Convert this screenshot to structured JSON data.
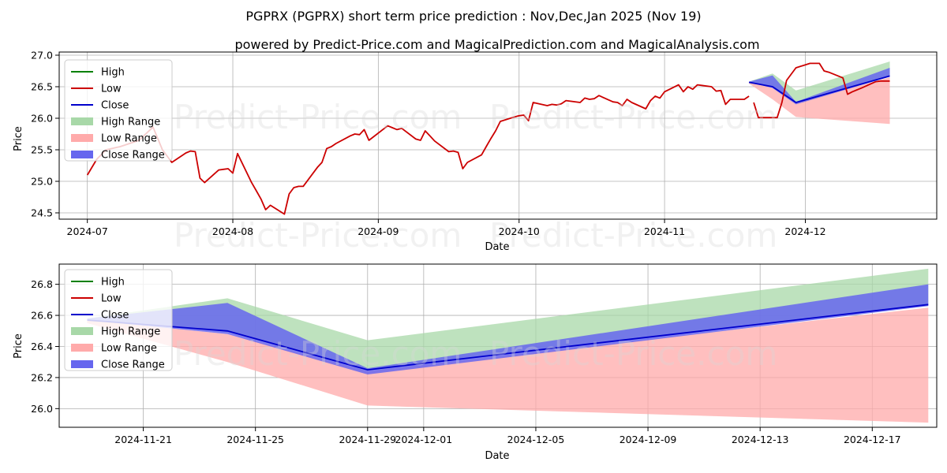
{
  "title": "PGPRX (PGPRX) short term price prediction : Nov,Dec,Jan 2025 (Nov 19)",
  "subtitle": "powered by Predict-Price.com and MagicalPrediction.com and MagicalAnalysis.com",
  "watermark": "Predict-Price.com",
  "colors": {
    "high": "#008000",
    "low": "#cc0000",
    "close": "#0000cc",
    "high_range": "#a8d8a8",
    "low_range": "#ffaaaa",
    "close_range": "#6666ee"
  },
  "chart_data": [
    {
      "type": "line",
      "xlabel": "Date",
      "ylabel": "Price",
      "ylim": [
        24.4,
        27.05
      ],
      "x_axis": {
        "start": "2024-06-25",
        "end": "2024-12-29"
      },
      "xticks": [
        {
          "date": "2024-07-01",
          "label": "2024-07"
        },
        {
          "date": "2024-08-01",
          "label": "2024-08"
        },
        {
          "date": "2024-09-01",
          "label": "2024-09"
        },
        {
          "date": "2024-10-01",
          "label": "2024-10"
        },
        {
          "date": "2024-11-01",
          "label": "2024-11"
        },
        {
          "date": "2024-12-01",
          "label": "2024-12"
        }
      ],
      "yticks": [
        24.5,
        25.0,
        25.5,
        26.0,
        26.5,
        27.0
      ],
      "grid": true,
      "legend_position": "top-left",
      "legend": [
        "High",
        "Low",
        "Close",
        "High Range",
        "Low Range",
        "Close Range"
      ],
      "series": [
        {
          "name": "Low",
          "x": [
            "2024-07-01",
            "2024-07-03",
            "2024-07-05",
            "2024-07-08",
            "2024-07-10",
            "2024-07-12",
            "2024-07-15",
            "2024-07-16",
            "2024-07-17",
            "2024-07-18",
            "2024-07-19",
            "2024-07-22",
            "2024-07-23",
            "2024-07-24",
            "2024-07-25",
            "2024-07-26",
            "2024-07-29",
            "2024-07-30",
            "2024-07-31",
            "2024-08-01",
            "2024-08-02",
            "2024-08-05",
            "2024-08-06",
            "2024-08-07",
            "2024-08-08",
            "2024-08-09",
            "2024-08-12",
            "2024-08-13",
            "2024-08-14",
            "2024-08-15",
            "2024-08-16",
            "2024-08-19",
            "2024-08-20",
            "2024-08-21",
            "2024-08-22",
            "2024-08-23",
            "2024-08-26",
            "2024-08-27",
            "2024-08-28",
            "2024-08-29",
            "2024-08-30",
            "2024-09-03",
            "2024-09-04",
            "2024-09-05",
            "2024-09-06",
            "2024-09-09",
            "2024-09-10",
            "2024-09-11",
            "2024-09-12",
            "2024-09-13",
            "2024-09-16",
            "2024-09-17",
            "2024-09-18",
            "2024-09-19",
            "2024-09-20",
            "2024-09-23",
            "2024-09-24",
            "2024-09-25",
            "2024-09-26",
            "2024-09-27",
            "2024-09-30",
            "2024-10-01",
            "2024-10-02",
            "2024-10-03",
            "2024-10-04",
            "2024-10-07",
            "2024-10-08",
            "2024-10-09",
            "2024-10-10",
            "2024-10-11",
            "2024-10-14",
            "2024-10-15",
            "2024-10-16",
            "2024-10-17",
            "2024-10-18",
            "2024-10-21",
            "2024-10-22",
            "2024-10-23",
            "2024-10-24",
            "2024-10-25",
            "2024-10-28",
            "2024-10-29",
            "2024-10-30",
            "2024-10-31",
            "2024-11-01",
            "2024-11-04",
            "2024-11-05",
            "2024-11-06",
            "2024-11-07",
            "2024-11-08",
            "2024-11-11",
            "2024-11-12",
            "2024-11-13",
            "2024-11-14",
            "2024-11-15",
            "2024-11-18",
            "2024-11-19"
          ],
          "values": [
            25.1,
            25.35,
            25.5,
            25.55,
            25.6,
            25.65,
            25.86,
            25.68,
            25.5,
            25.4,
            25.3,
            25.45,
            25.48,
            25.47,
            25.05,
            24.98,
            25.18,
            25.19,
            25.2,
            25.13,
            25.44,
            24.98,
            24.85,
            24.72,
            24.55,
            24.62,
            24.48,
            24.8,
            24.9,
            24.92,
            24.92,
            25.22,
            25.3,
            25.52,
            25.55,
            25.6,
            25.72,
            25.75,
            25.74,
            25.82,
            25.65,
            25.88,
            25.85,
            25.82,
            25.84,
            25.67,
            25.65,
            25.8,
            25.72,
            25.64,
            25.47,
            25.48,
            25.46,
            25.2,
            25.3,
            25.42,
            25.55,
            25.68,
            25.8,
            25.95,
            26.02,
            26.04,
            26.05,
            25.96,
            26.25,
            26.2,
            26.22,
            26.21,
            26.23,
            26.28,
            26.25,
            26.32,
            26.3,
            26.31,
            26.36,
            26.26,
            26.25,
            26.2,
            26.3,
            26.25,
            26.15,
            26.28,
            26.35,
            26.32,
            26.42,
            26.53,
            26.42,
            26.5,
            26.46,
            26.53,
            26.5,
            26.43,
            26.44,
            26.22,
            26.3,
            26.3,
            26.35
          ],
          "color_key": "low"
        },
        {
          "name": "Low (cont.)",
          "x": [
            "2024-11-20",
            "2024-11-21",
            "2024-11-22",
            "2024-11-25",
            "2024-11-26",
            "2024-11-27",
            "2024-11-29",
            "2024-12-02",
            "2024-12-03",
            "2024-12-04",
            "2024-12-05",
            "2024-12-06",
            "2024-12-09",
            "2024-12-10",
            "2024-12-11",
            "2024-12-12",
            "2024-12-13",
            "2024-12-16",
            "2024-12-17",
            "2024-12-18",
            "2024-12-19"
          ],
          "values": [
            26.25,
            26.01,
            26.01,
            26.01,
            26.25,
            26.6,
            26.8,
            26.87,
            26.87,
            26.87,
            26.75,
            26.73,
            26.64,
            26.38,
            26.42,
            26.45,
            26.48,
            26.58,
            26.59,
            26.59,
            26.59
          ],
          "color_key": "low"
        }
      ]
    },
    {
      "type": "area",
      "xlabel": "Date",
      "ylabel": "Price",
      "ylim": [
        25.88,
        26.93
      ],
      "x_axis": {
        "start": "2024-11-18",
        "end": "2024-12-19.3"
      },
      "xticks": [
        {
          "date": "2024-11-21",
          "label": "2024-11-21"
        },
        {
          "date": "2024-11-25",
          "label": "2024-11-25"
        },
        {
          "date": "2024-11-29",
          "label": "2024-11-29"
        },
        {
          "date": "2024-12-01",
          "label": "2024-12-01"
        },
        {
          "date": "2024-12-05",
          "label": "2024-12-05"
        },
        {
          "date": "2024-12-09",
          "label": "2024-12-09"
        },
        {
          "date": "2024-12-13",
          "label": "2024-12-13"
        },
        {
          "date": "2024-12-17",
          "label": "2024-12-17"
        }
      ],
      "yticks": [
        26.0,
        26.2,
        26.4,
        26.6,
        26.8
      ],
      "grid": true,
      "legend_position": "top-left",
      "legend": [
        "High",
        "Low",
        "Close",
        "High Range",
        "Low Range",
        "Close Range"
      ],
      "x": [
        "2024-11-19",
        "2024-11-24",
        "2024-11-29",
        "2024-12-19"
      ],
      "series": [
        {
          "name": "Close",
          "values": [
            26.57,
            26.5,
            26.25,
            26.67
          ]
        },
        {
          "name": "High Range",
          "upper": [
            26.58,
            26.71,
            26.44,
            26.9
          ],
          "lower": [
            26.56,
            26.5,
            26.25,
            26.67
          ]
        },
        {
          "name": "Low Range",
          "upper": [
            26.57,
            26.48,
            26.24,
            26.65
          ],
          "lower": [
            26.55,
            26.3,
            26.02,
            25.91
          ]
        },
        {
          "name": "Close Range",
          "upper": [
            26.58,
            26.68,
            26.26,
            26.8
          ],
          "lower": [
            26.57,
            26.48,
            26.22,
            26.66
          ]
        }
      ]
    }
  ]
}
